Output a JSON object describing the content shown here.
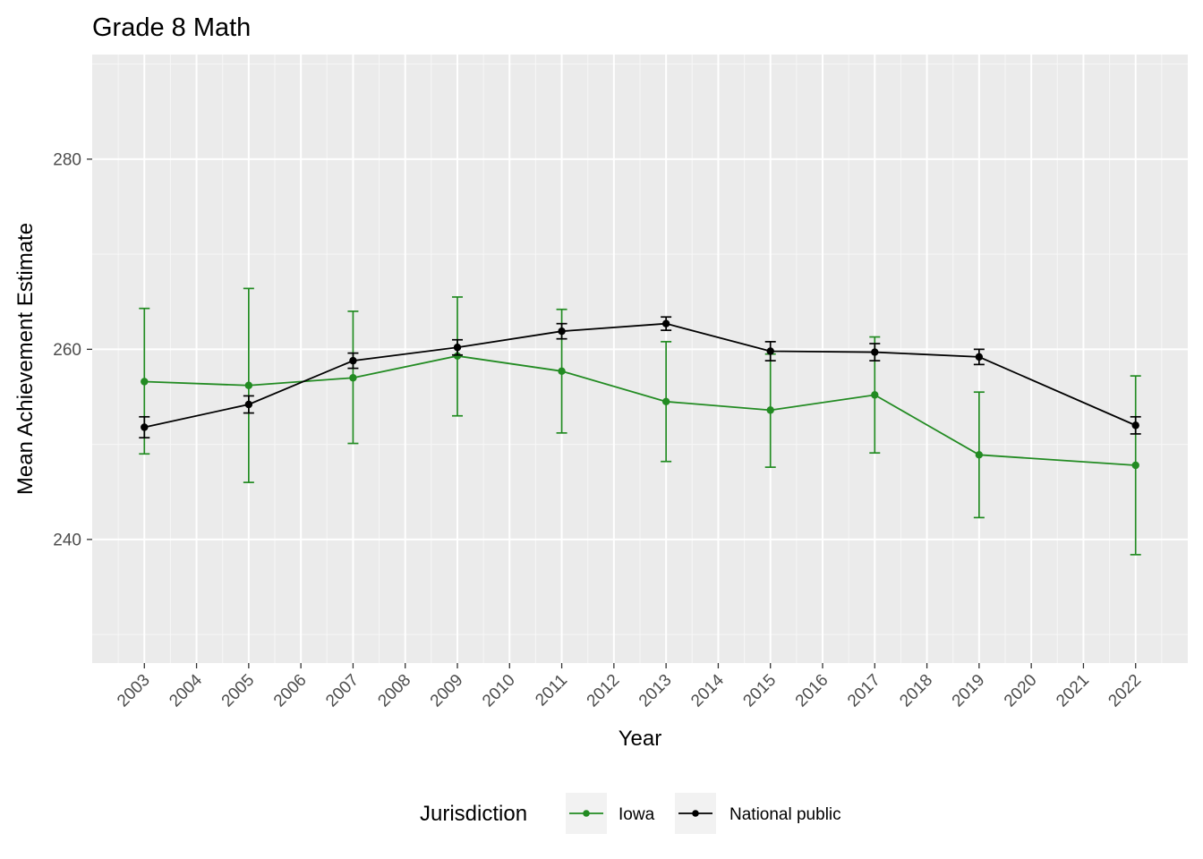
{
  "chart_data": {
    "type": "line",
    "title": "Grade 8 Math",
    "xlabel": "Year",
    "ylabel": "Mean Achievement Estimate",
    "x_ticks": [
      "2003",
      "2004",
      "2005",
      "2006",
      "2007",
      "2008",
      "2009",
      "2010",
      "2011",
      "2012",
      "2013",
      "2014",
      "2015",
      "2016",
      "2017",
      "2018",
      "2019",
      "2020",
      "2021",
      "2022"
    ],
    "y_ticks": [
      240,
      260,
      280
    ],
    "xlim": [
      2002,
      2023
    ],
    "ylim": [
      227,
      291
    ],
    "grid": true,
    "legend": {
      "title": "Jurisdiction",
      "position": "bottom"
    },
    "series": [
      {
        "name": "Iowa",
        "color": "#228b22",
        "x": [
          2003,
          2005,
          2007,
          2009,
          2011,
          2013,
          2015,
          2017,
          2019,
          2022
        ],
        "y": [
          256.6,
          256.2,
          257.0,
          259.3,
          257.7,
          254.5,
          253.6,
          255.2,
          248.9,
          247.8
        ],
        "ymin": [
          249.0,
          246.0,
          250.1,
          253.0,
          251.2,
          248.2,
          247.6,
          249.1,
          242.3,
          238.4
        ],
        "ymax": [
          264.3,
          266.4,
          264.0,
          265.5,
          264.2,
          260.8,
          259.5,
          261.3,
          255.5,
          257.2
        ]
      },
      {
        "name": "National public",
        "color": "#000000",
        "x": [
          2003,
          2005,
          2007,
          2009,
          2011,
          2013,
          2015,
          2017,
          2019,
          2022
        ],
        "y": [
          251.8,
          254.2,
          258.8,
          260.2,
          261.9,
          262.7,
          259.8,
          259.7,
          259.2,
          252.0
        ],
        "ymin": [
          250.7,
          253.3,
          258.0,
          259.4,
          261.1,
          262.0,
          258.8,
          258.8,
          258.4,
          251.1
        ],
        "ymax": [
          252.9,
          255.1,
          259.6,
          261.0,
          262.7,
          263.4,
          260.8,
          260.6,
          260.0,
          252.9
        ]
      }
    ]
  }
}
